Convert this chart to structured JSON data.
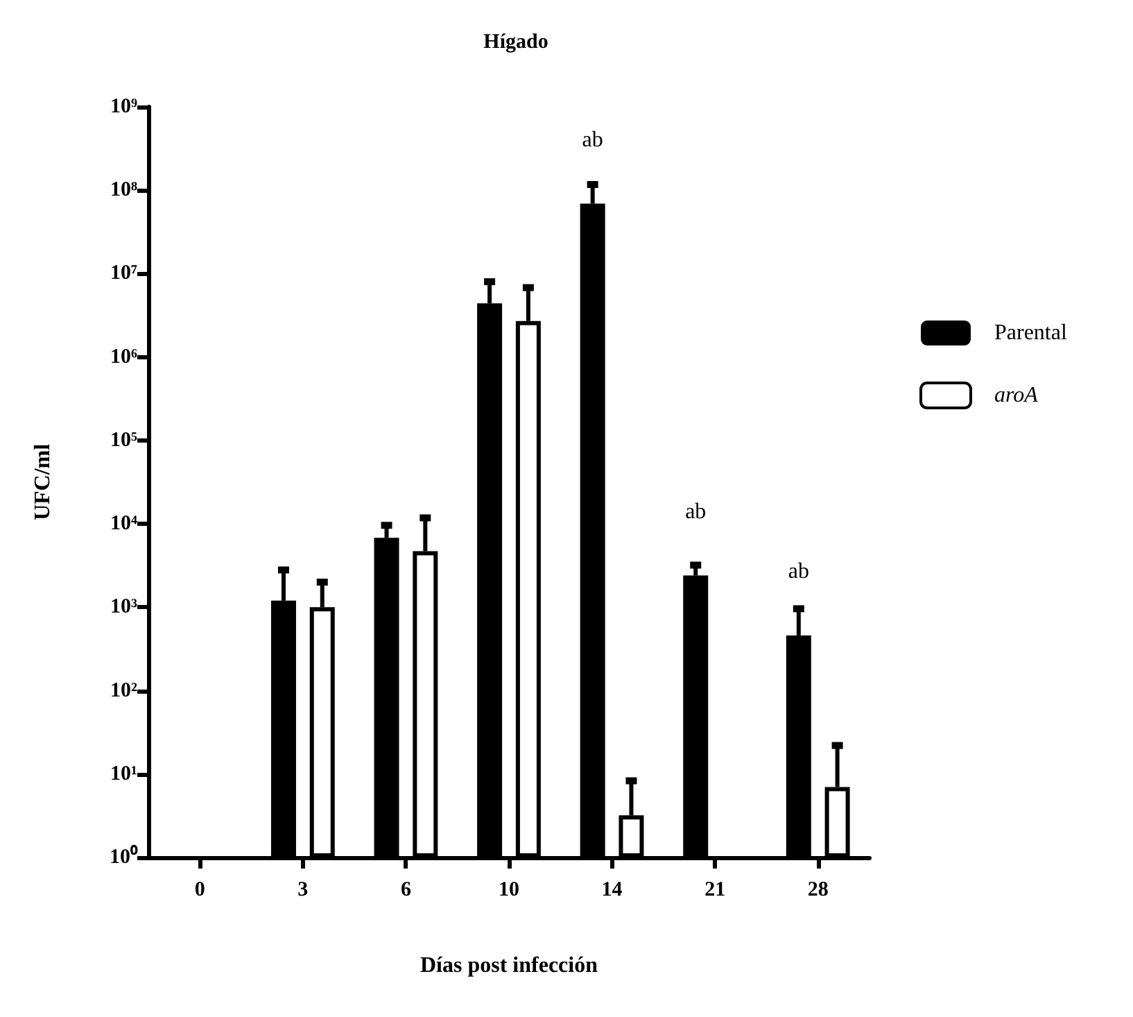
{
  "chart_data": {
    "type": "bar",
    "title": "Hígado",
    "xlabel": "Días post infección",
    "ylabel": "UFC/ml",
    "categories": [
      "0",
      "3",
      "6",
      "10",
      "14",
      "21",
      "28"
    ],
    "series": [
      {
        "name": "Parental",
        "color": "#000000",
        "values": [
          null,
          1200,
          6800,
          4400000,
          69000000,
          2400,
          460
        ],
        "value_labels": [
          null,
          null,
          null,
          null,
          "ab",
          "ab",
          "ab"
        ],
        "errors": [
          null,
          [
            1200,
            2800
          ],
          [
            6800,
            9600
          ],
          [
            4400000,
            8000000
          ],
          [
            69000000,
            117000000
          ],
          [
            2400,
            3200
          ],
          [
            460,
            960
          ]
        ]
      },
      {
        "name": "aroA",
        "color": "#ffffff",
        "values": [
          null,
          1000,
          4700,
          2700000,
          3.2,
          null,
          7
        ],
        "errors": [
          null,
          [
            1000,
            2000
          ],
          [
            4700,
            11800
          ],
          [
            2700000,
            6800000
          ],
          [
            3.2,
            8.3
          ],
          null,
          [
            7,
            22
          ]
        ]
      }
    ],
    "log": "y",
    "ylim": [
      1,
      1000000000
    ],
    "yticks": [
      {
        "value": 1,
        "label": "10⁰"
      },
      {
        "value": 10,
        "label": "10¹"
      },
      {
        "value": 100,
        "label": "10²"
      },
      {
        "value": 1000,
        "label": "10³"
      },
      {
        "value": 10000,
        "label": "10⁴"
      },
      {
        "value": 100000,
        "label": "10⁵"
      },
      {
        "value": 1000000,
        "label": "10⁶"
      },
      {
        "value": 10000000,
        "label": "10⁷"
      },
      {
        "value": 100000000,
        "label": "10⁸"
      },
      {
        "value": 1000000000,
        "label": "10⁹"
      }
    ],
    "legend": "right",
    "grid": false
  }
}
